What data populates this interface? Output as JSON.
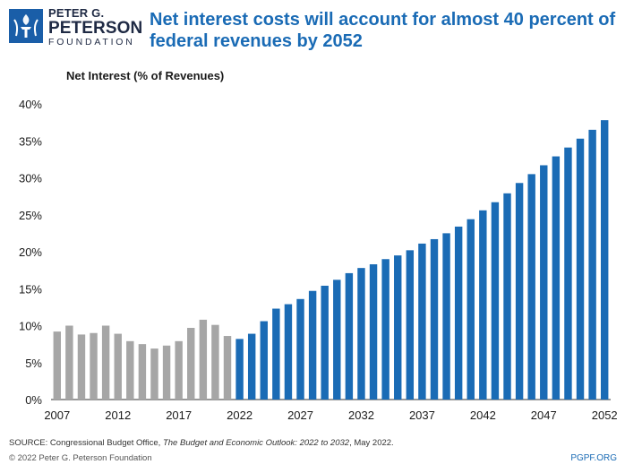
{
  "brand": {
    "line1": "PETER G.",
    "line2": "PETERSON",
    "line3": "FOUNDATION",
    "logo_icon": "torch-icon",
    "color": "#1a5ea8"
  },
  "title": "Net interest costs will account for almost 40 percent of federal revenues by 2052",
  "footer": {
    "source_prefix": "SOURCE: Congressional Budget Office, ",
    "source_italic": "The Budget and Economic Outlook: 2022 to 2032",
    "source_suffix": ", May 2022.",
    "copyright": "© 2022 Peter G. Peterson Foundation",
    "site": "PGPF.ORG"
  },
  "chart_data": {
    "type": "bar",
    "subtitle": "Net Interest (% of Revenues)",
    "ylim": [
      0,
      40
    ],
    "yticks": [
      "0%",
      "5%",
      "10%",
      "15%",
      "20%",
      "25%",
      "30%",
      "35%",
      "40%"
    ],
    "xtick_labels": [
      "2007",
      "2012",
      "2017",
      "2022",
      "2027",
      "2032",
      "2037",
      "2042",
      "2047",
      "2052"
    ],
    "grid": false,
    "colors": {
      "historical": "#a6a6a6",
      "projected": "#1a6bb5"
    },
    "categories": [
      2007,
      2008,
      2009,
      2010,
      2011,
      2012,
      2013,
      2014,
      2015,
      2016,
      2017,
      2018,
      2019,
      2020,
      2021,
      2022,
      2023,
      2024,
      2025,
      2026,
      2027,
      2028,
      2029,
      2030,
      2031,
      2032,
      2033,
      2034,
      2035,
      2036,
      2037,
      2038,
      2039,
      2040,
      2041,
      2042,
      2043,
      2044,
      2045,
      2046,
      2047,
      2048,
      2049,
      2050,
      2051,
      2052
    ],
    "series": [
      {
        "values": [
          9.2,
          10.0,
          8.8,
          9.0,
          10.0,
          8.9,
          7.9,
          7.5,
          6.9,
          7.3,
          7.9,
          9.7,
          10.8,
          10.1,
          8.6,
          null,
          null,
          null,
          null,
          null,
          null,
          null,
          null,
          null,
          null,
          null,
          null,
          null,
          null,
          null,
          null,
          null,
          null,
          null,
          null,
          null,
          null,
          null,
          null,
          null,
          null,
          null,
          null,
          null,
          null,
          null
        ]
      },
      {
        "values": [
          null,
          null,
          null,
          null,
          null,
          null,
          null,
          null,
          null,
          null,
          null,
          null,
          null,
          null,
          null,
          8.2,
          8.9,
          10.6,
          12.3,
          12.9,
          13.6,
          14.7,
          15.4,
          16.2,
          17.1,
          17.8,
          18.3,
          19.0,
          19.5,
          20.2,
          21.1,
          21.7,
          22.5,
          23.4,
          24.4,
          25.6,
          26.7,
          27.9,
          29.3,
          30.5,
          31.7,
          32.9,
          34.1,
          35.3,
          36.5,
          37.8
        ]
      }
    ]
  }
}
